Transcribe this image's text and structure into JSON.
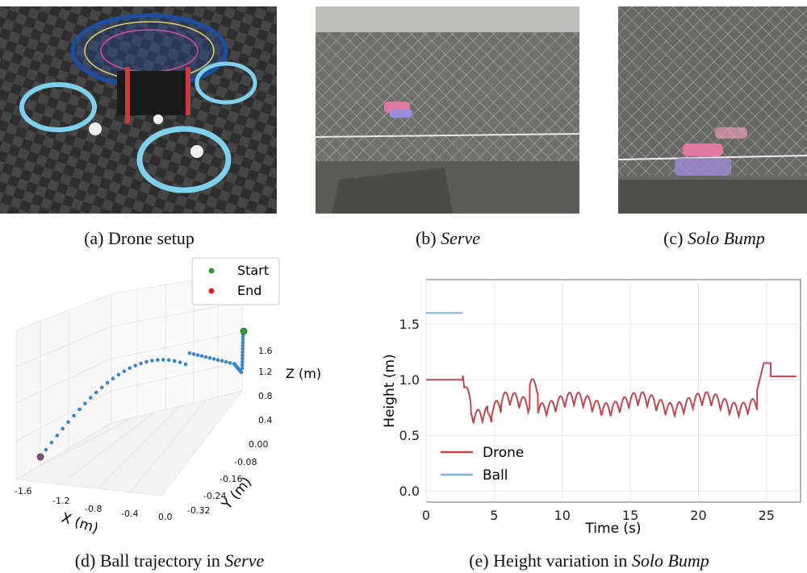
{
  "captions": {
    "a": "(a) Drone setup",
    "b_prefix": "(b) ",
    "b_em": "Serve",
    "c_prefix": "(c) ",
    "c_em": "Solo Bump",
    "d_prefix": "(d) Ball trajectory in ",
    "d_em": "Serve",
    "e_prefix": "(e) Height variation in ",
    "e_em": "Solo Bump"
  },
  "colors": {
    "drone": "#c0464f",
    "ball": "#7fb3d8",
    "traj": "#3b86c6",
    "start": "#2ca02c",
    "end": "#d62728",
    "grid": "#e6e6e6"
  },
  "chart_data": [
    {
      "type": "scatter",
      "projection": "3d",
      "title": "",
      "legend": [
        "Start",
        "End"
      ],
      "xlabel": "X (m)",
      "ylabel": "Y (m)",
      "zlabel": "Z (m)",
      "x_ticks": [
        "-1.6",
        "-1.2",
        "-0.8",
        "-0.4",
        "0.0"
      ],
      "y_ticks": [
        "0.00",
        "-0.08",
        "-0.16",
        "-0.24",
        "-0.32"
      ],
      "z_ticks": [
        "1.6",
        "1.2",
        "0.8",
        "0.4"
      ],
      "legend_position": "top-right"
    },
    {
      "type": "line",
      "title": "",
      "xlabel": "Time (s)",
      "ylabel": "Height (m)",
      "xlim": [
        0,
        27.5
      ],
      "ylim": [
        -0.1,
        1.9
      ],
      "x_ticks": [
        0,
        5,
        10,
        15,
        20,
        25
      ],
      "y_ticks": [
        "0.0",
        "0.5",
        "1.0",
        "1.5"
      ],
      "legend_position": "lower-left",
      "series": [
        {
          "name": "Drone"
        },
        {
          "name": "Ball"
        }
      ]
    }
  ]
}
